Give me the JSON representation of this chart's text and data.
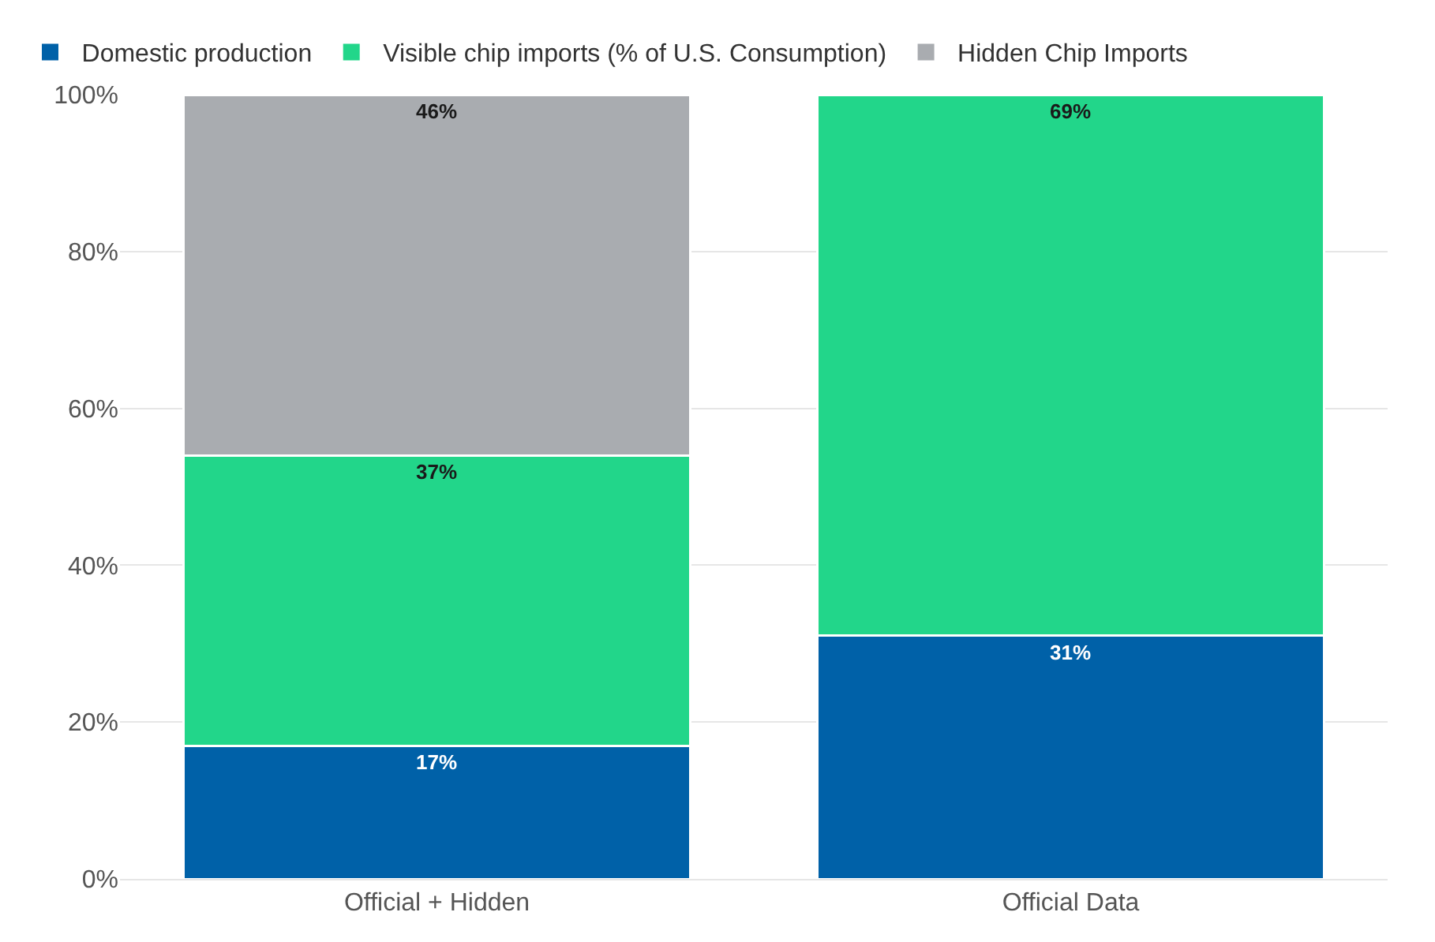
{
  "chart_data": {
    "type": "bar",
    "stacked": true,
    "categories": [
      "Official + Hidden",
      "Official Data"
    ],
    "series": [
      {
        "name": "Domestic production",
        "color": "#0061a8",
        "values": [
          17,
          31
        ],
        "value_labels": [
          "17%",
          "31%"
        ]
      },
      {
        "name": "Visible chip imports (% of U.S. Consumption)",
        "color": "#22d68a",
        "values": [
          37,
          69
        ],
        "value_labels": [
          "37%",
          "69%"
        ]
      },
      {
        "name": "Hidden Chip Imports",
        "color": "#a9acb0",
        "values": [
          46,
          null
        ],
        "value_labels": [
          "46%",
          null
        ]
      }
    ],
    "ylim": [
      0,
      100
    ],
    "yticks": [
      {
        "value": 0,
        "label": "0%"
      },
      {
        "value": 20,
        "label": "20%"
      },
      {
        "value": 40,
        "label": "40%"
      },
      {
        "value": 60,
        "label": "60%"
      },
      {
        "value": 80,
        "label": "80%"
      },
      {
        "value": 100,
        "label": "100%"
      }
    ],
    "grid": "y",
    "legend": "top left"
  }
}
